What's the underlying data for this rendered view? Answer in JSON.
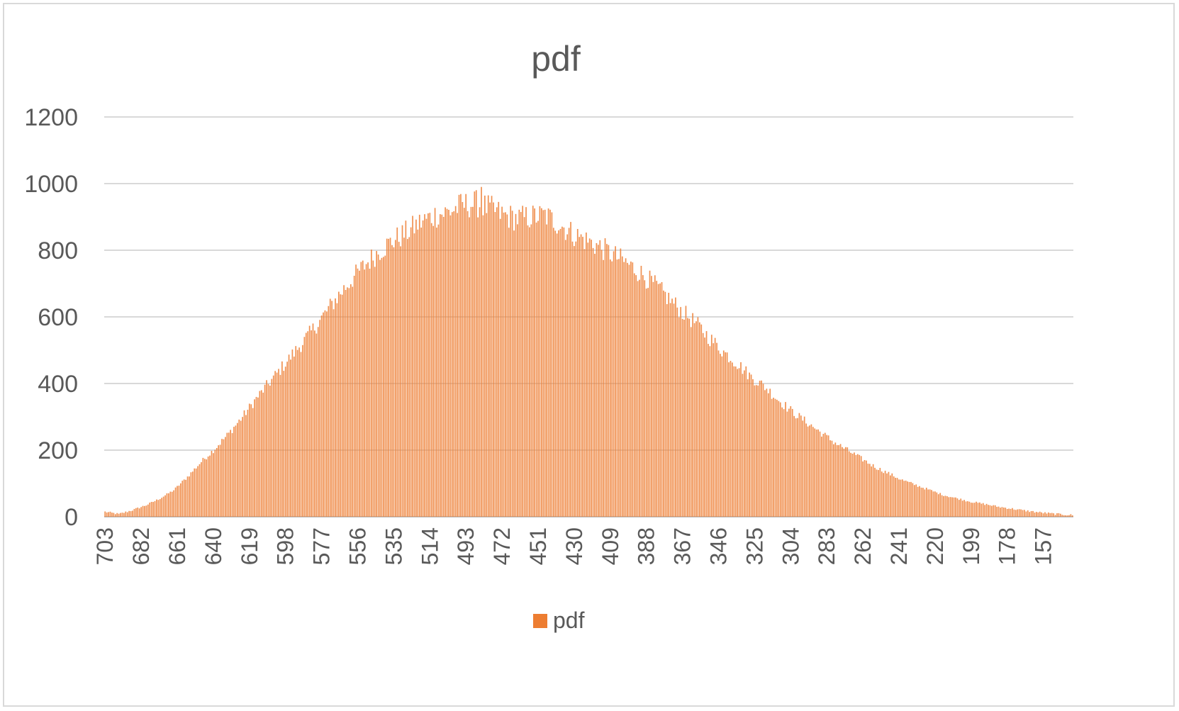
{
  "chart_data": {
    "type": "bar",
    "title": "pdf",
    "xlabel": "",
    "ylabel": "",
    "ylim": [
      0,
      1200
    ],
    "yticks": [
      0,
      200,
      400,
      600,
      800,
      1000,
      1200
    ],
    "x_start": 703,
    "x_end": 140,
    "x_step": -1,
    "x_tick_labels": [
      "703",
      "682",
      "661",
      "640",
      "619",
      "598",
      "577",
      "556",
      "535",
      "514",
      "493",
      "472",
      "451",
      "430",
      "409",
      "388",
      "367",
      "346",
      "325",
      "304",
      "283",
      "262",
      "241",
      "220",
      "199",
      "178",
      "157"
    ],
    "grid": true,
    "legend_position": "bottom",
    "series": [
      {
        "name": "pdf",
        "color": "#ED7D31",
        "peak_x": 484,
        "peak_value": 990,
        "x": [
          703,
          695,
          687,
          679,
          671,
          663,
          655,
          647,
          639,
          631,
          623,
          615,
          607,
          599,
          591,
          583,
          575,
          567,
          559,
          551,
          543,
          535,
          527,
          519,
          511,
          503,
          495,
          487,
          479,
          471,
          463,
          455,
          447,
          439,
          431,
          423,
          415,
          407,
          399,
          391,
          383,
          375,
          367,
          359,
          351,
          343,
          335,
          327,
          319,
          311,
          303,
          295,
          287,
          279,
          271,
          263,
          255,
          247,
          239,
          231,
          223,
          215,
          207,
          199,
          191,
          183,
          175,
          167,
          159,
          151,
          143,
          140
        ],
        "values": [
          15,
          8,
          20,
          35,
          55,
          80,
          120,
          165,
          205,
          250,
          300,
          355,
          405,
          455,
          505,
          555,
          610,
          665,
          715,
          760,
          800,
          830,
          855,
          885,
          905,
          915,
          935,
          940,
          925,
          905,
          895,
          900,
          905,
          880,
          850,
          830,
          810,
          785,
          760,
          730,
          695,
          655,
          615,
          580,
          535,
          495,
          460,
          420,
          390,
          350,
          315,
          285,
          255,
          225,
          200,
          175,
          150,
          130,
          110,
          95,
          80,
          65,
          55,
          45,
          38,
          30,
          24,
          18,
          13,
          9,
          6,
          5
        ]
      }
    ]
  }
}
